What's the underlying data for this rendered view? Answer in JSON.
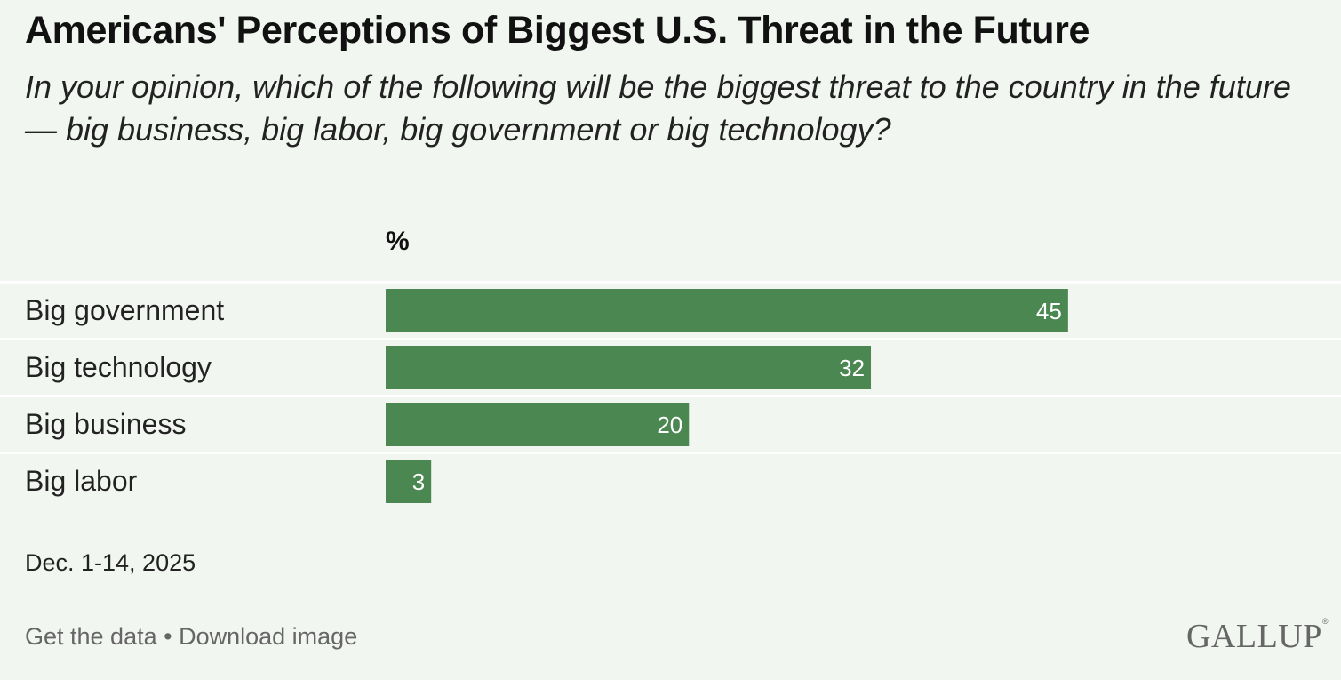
{
  "header": {
    "title": "Americans' Perceptions of Biggest U.S. Threat in the Future",
    "subtitle": "In your opinion, which of the following will be the biggest threat to the country in the future — big business, big labor, big government or big technology?"
  },
  "chart_data": {
    "type": "bar",
    "orientation": "horizontal",
    "unit_label": "%",
    "categories": [
      "Big government",
      "Big technology",
      "Big business",
      "Big labor"
    ],
    "values": [
      45,
      32,
      20,
      3
    ],
    "data_labels": [
      "45",
      "32",
      "20",
      "3"
    ],
    "xlim": [
      0,
      63
    ],
    "grid": false,
    "legend": "none",
    "bar_color": "#4a8751"
  },
  "note": {
    "date": "Dec. 1-14, 2025"
  },
  "footer": {
    "get_data_label": "Get the data",
    "separator": "•",
    "download_label": "Download image",
    "logo_text": "GALLUP",
    "logo_mark": "®"
  },
  "colors": {
    "background": "#f2f6f1",
    "bar": "#4a8751",
    "separator": "#ffffff"
  }
}
